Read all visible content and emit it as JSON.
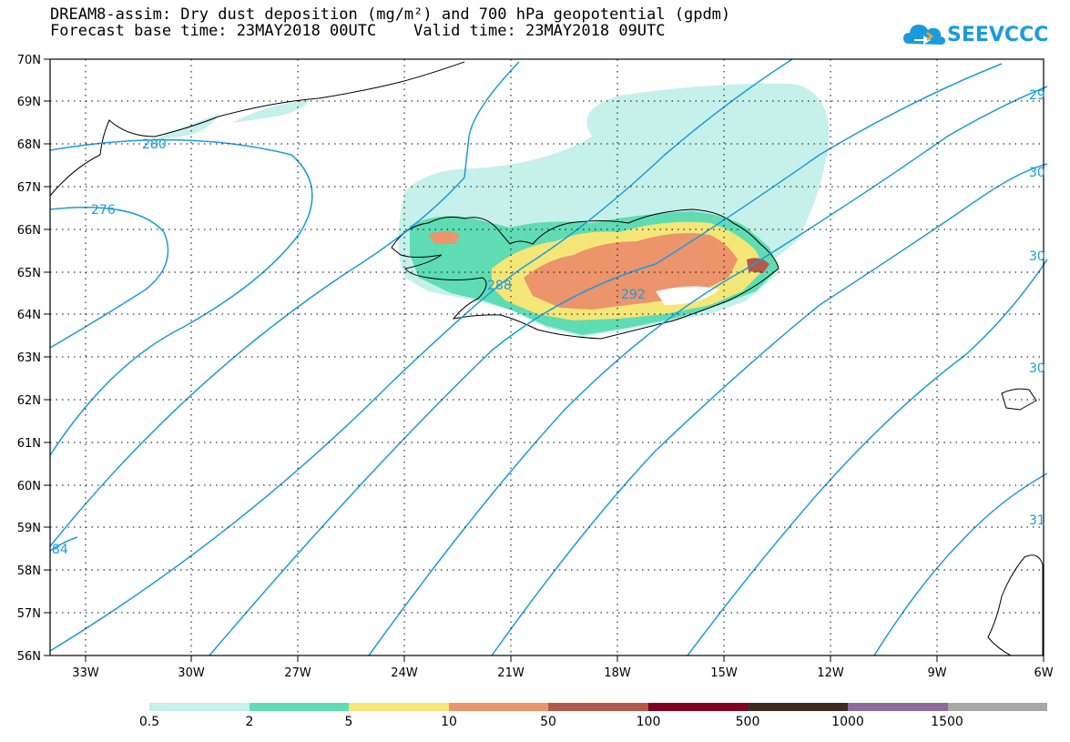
{
  "header": {
    "title_line1": "DREAM8-assim: Dry dust deposition (mg/m²) and 700 hPa geopotential (gpdm)",
    "title_line2": "Forecast base time: 23MAY2018 00UTC    Valid time: 23MAY2018 09UTC"
  },
  "logo": {
    "text": "SEEVCCC",
    "color": "#1a9be0"
  },
  "map": {
    "lat_labels": [
      "70N",
      "69N",
      "68N",
      "67N",
      "66N",
      "65N",
      "64N",
      "63N",
      "62N",
      "61N",
      "60N",
      "59N",
      "58N",
      "57N",
      "56N"
    ],
    "lon_labels": [
      "33W",
      "30W",
      "27W",
      "24W",
      "21W",
      "18W",
      "15W",
      "12W",
      "9W",
      "6W"
    ],
    "contour_labels": [
      "280",
      "276",
      "288",
      "292",
      "29",
      "30",
      "30",
      "30",
      "31",
      "84"
    ],
    "contour_color": "#1a9be0"
  },
  "legend": {
    "colors": [
      "#c6f1ea",
      "#5fdcb3",
      "#f5e678",
      "#ec946b",
      "#b4584c",
      "#800021",
      "#3e2a1e",
      "#8e6b9d",
      "#a8a8a8"
    ],
    "labels": [
      "0.5",
      "2",
      "5",
      "10",
      "50",
      "100",
      "500",
      "1000",
      "1500"
    ]
  }
}
